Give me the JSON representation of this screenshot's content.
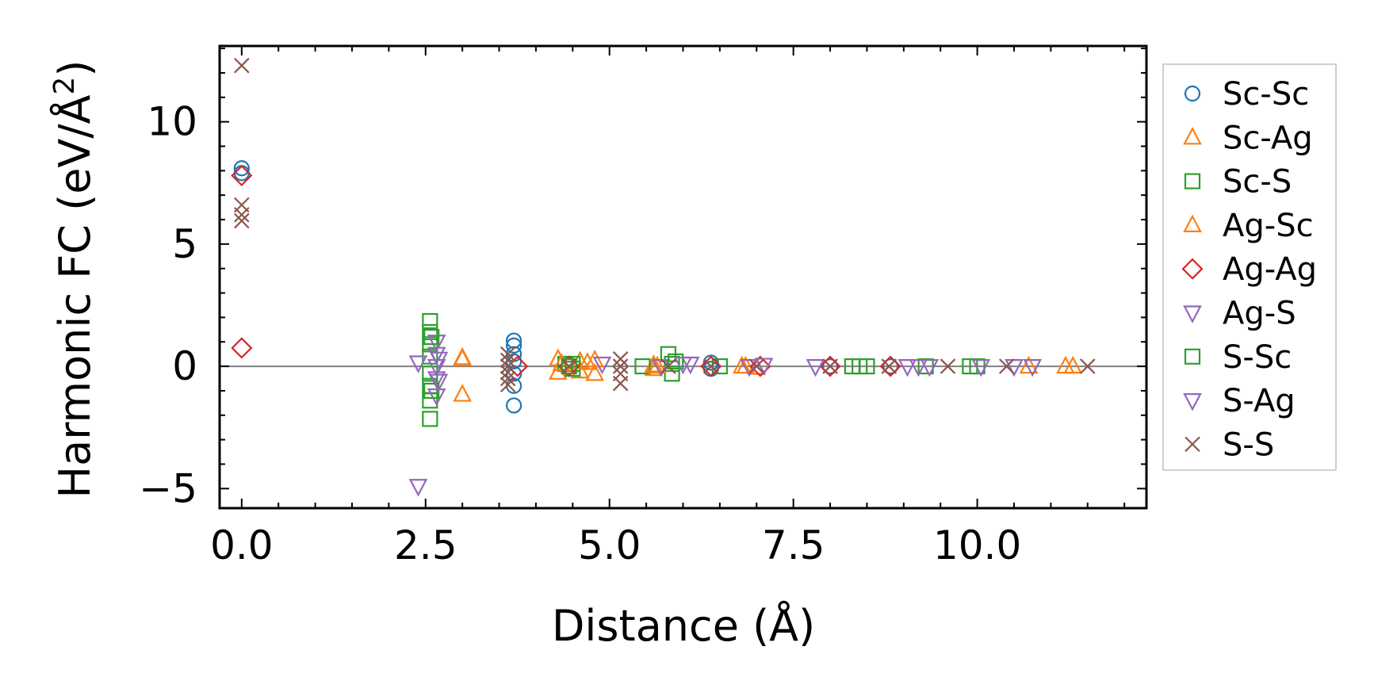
{
  "chart_data": {
    "type": "scatter",
    "title": "",
    "xlabel": "Distance (Å)",
    "ylabel_main": "Harmonic FC (eV/Å",
    "ylabel_sup": "2",
    "ylabel_close": ")",
    "xlim": [
      -0.3,
      12.3
    ],
    "ylim": [
      -5.8,
      13.1
    ],
    "xticks": [
      0.0,
      2.5,
      5.0,
      7.5,
      10.0
    ],
    "xtick_labels": [
      "0.0",
      "2.5",
      "5.0",
      "7.5",
      "10.0"
    ],
    "yticks": [
      -5,
      0,
      5,
      10
    ],
    "ytick_labels": [
      "−5",
      "0",
      "5",
      "10"
    ],
    "zero_line": 0,
    "legend_position": "outside-right",
    "series": [
      {
        "name": "Sc-Sc",
        "marker": "circle",
        "color": "#1f77b4",
        "x": [
          0.0,
          0.0,
          3.7,
          3.7,
          3.7,
          3.7,
          3.7,
          3.7,
          3.7,
          6.38,
          6.38,
          8.0,
          8.82
        ],
        "y": [
          8.1,
          7.9,
          1.05,
          0.85,
          0.5,
          0.2,
          -0.3,
          -0.8,
          -1.6,
          0.15,
          -0.1,
          0.0,
          0.0
        ]
      },
      {
        "name": "Sc-Ag",
        "marker": "triangle-up",
        "color": "#ff7f0e",
        "x": [
          3.0,
          3.0,
          4.3,
          4.3,
          4.6,
          4.6,
          4.8,
          4.8,
          5.6,
          5.6,
          6.8,
          7.0,
          11.2,
          11.3
        ],
        "y": [
          0.35,
          -1.15,
          0.3,
          -0.25,
          0.2,
          -0.2,
          0.25,
          -0.3,
          0.05,
          -0.1,
          0.0,
          -0.05,
          0.0,
          0.0
        ]
      },
      {
        "name": "Sc-S",
        "marker": "square",
        "color": "#2ca02c",
        "x": [
          2.56,
          2.56,
          2.56,
          2.56,
          2.56,
          2.56,
          2.56,
          2.56,
          4.4,
          4.5,
          4.5,
          5.45,
          5.8,
          5.85,
          5.85,
          6.5,
          8.3,
          8.5,
          9.3,
          9.9,
          10.0
        ],
        "y": [
          1.85,
          1.4,
          0.9,
          0.4,
          -0.3,
          -0.8,
          -1.4,
          -2.15,
          0.1,
          0.1,
          -0.1,
          0.0,
          0.5,
          0.1,
          -0.3,
          0.0,
          0.0,
          0.0,
          0.0,
          0.0,
          0.0
        ]
      },
      {
        "name": "Ag-Sc",
        "marker": "triangle-up",
        "color": "#ff7f0e",
        "x": [
          3.0,
          4.35,
          4.7,
          5.65,
          6.85,
          10.7
        ],
        "y": [
          0.3,
          0.1,
          0.15,
          0.0,
          0.0,
          0.0
        ]
      },
      {
        "name": "Ag-Ag",
        "marker": "diamond",
        "color": "#d62728",
        "x": [
          0.0,
          0.0,
          3.75,
          4.45,
          6.38,
          7.05,
          8.0,
          8.82
        ],
        "y": [
          7.8,
          0.75,
          0.0,
          0.0,
          0.0,
          0.0,
          0.0,
          0.0
        ]
      },
      {
        "name": "Ag-S",
        "marker": "triangle-down",
        "color": "#9467bd",
        "x": [
          2.4,
          2.4,
          2.65,
          2.65,
          2.65,
          2.65,
          2.65,
          4.9,
          5.7,
          6.1,
          6.9,
          7.8,
          9.05,
          9.35,
          10.05,
          10.5,
          10.75
        ],
        "y": [
          -4.9,
          0.15,
          1.0,
          0.5,
          0.0,
          -0.5,
          -1.2,
          0.1,
          0.0,
          0.1,
          0.0,
          0.0,
          0.0,
          0.0,
          0.0,
          0.0,
          0.0
        ]
      },
      {
        "name": "S-Sc",
        "marker": "square",
        "color": "#2ca02c",
        "x": [
          2.58,
          2.58,
          4.45,
          5.9,
          8.4
        ],
        "y": [
          1.2,
          -1.0,
          0.0,
          0.2,
          0.0
        ]
      },
      {
        "name": "S-Ag",
        "marker": "triangle-down",
        "color": "#9467bd",
        "x": [
          2.68,
          2.68,
          6.0,
          7.1,
          9.2
        ],
        "y": [
          0.3,
          -0.6,
          0.1,
          0.05,
          0.0
        ]
      },
      {
        "name": "S-S",
        "marker": "x",
        "color": "#8c564b",
        "x": [
          0.0,
          0.0,
          0.0,
          0.0,
          3.62,
          3.62,
          3.62,
          3.62,
          3.62,
          3.62,
          4.45,
          5.15,
          5.15,
          5.15,
          5.15,
          5.8,
          6.38,
          7.0,
          8.0,
          8.8,
          9.6,
          10.4,
          11.5
        ],
        "y": [
          12.3,
          6.6,
          6.2,
          5.95,
          0.5,
          0.25,
          0.0,
          -0.25,
          -0.5,
          -0.75,
          0.0,
          0.3,
          0.0,
          -0.3,
          -0.7,
          0.0,
          0.0,
          0.0,
          0.0,
          0.0,
          0.0,
          0.0,
          0.0
        ]
      }
    ]
  }
}
